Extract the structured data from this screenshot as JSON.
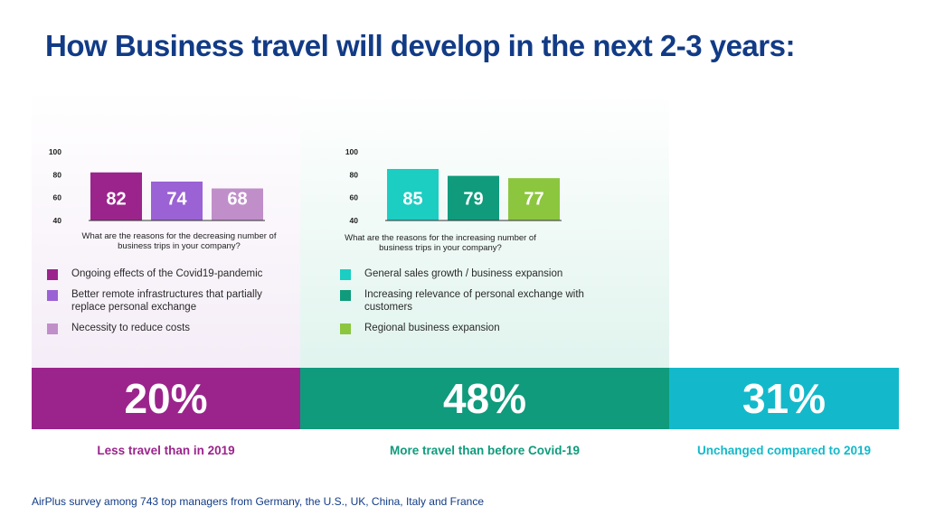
{
  "page": {
    "title": "How Business travel will develop in the next 2-3 years:",
    "footer": "AirPlus survey among 743 top managers from Germany, the U.S., UK, China, Italy and France"
  },
  "panels": {
    "decrease": {
      "question": "What are the reasons for the decreasing number of business trips in your company?",
      "legend": [
        {
          "label": "Ongoing effects of the Covid19-pandemic",
          "color": "#9b248c"
        },
        {
          "label": "Better remote infrastructures that partially replace personal exchange",
          "color": "#9a62d4"
        },
        {
          "label": "Necessity to reduce costs",
          "color": "#c08fca"
        }
      ]
    },
    "increase": {
      "question": "What are the reasons for the increasing number of business trips in your company?",
      "legend": [
        {
          "label": "General sales growth / business expansion",
          "color": "#1ccdc2"
        },
        {
          "label": "Increasing relevance of personal exchange with customers",
          "color": "#0f9b7c"
        },
        {
          "label": "Regional business expansion",
          "color": "#8cc63f"
        }
      ]
    }
  },
  "bands": {
    "less": {
      "value": "20%",
      "caption": "Less travel than in 2019",
      "color": "#9b248c"
    },
    "more": {
      "value": "48%",
      "caption": "More travel than before Covid-19",
      "color": "#0f9b7c"
    },
    "unchanged": {
      "value": "31%",
      "caption": "Unchanged compared to 2019",
      "color": "#13b9ca"
    }
  },
  "chart_data": [
    {
      "type": "bar",
      "categories": [
        "Ongoing effects of the Covid19-pandemic",
        "Better remote infrastructures that partially replace personal exchange",
        "Necessity to reduce costs"
      ],
      "values": [
        82,
        74,
        68
      ],
      "colors": [
        "#9b248c",
        "#9a62d4",
        "#c08fca"
      ],
      "yticks": [
        100,
        80,
        60,
        40
      ],
      "ylim": [
        40,
        100
      ],
      "data_labels": true,
      "grid": false
    },
    {
      "type": "bar",
      "categories": [
        "General sales growth / business expansion",
        "Increasing relevance of personal exchange with customers",
        "Regional business expansion"
      ],
      "values": [
        85,
        79,
        77
      ],
      "colors": [
        "#1ccdc2",
        "#0f9b7c",
        "#8cc63f"
      ],
      "yticks": [
        100,
        80,
        60,
        40
      ],
      "ylim": [
        40,
        100
      ],
      "data_labels": true,
      "grid": false
    }
  ]
}
